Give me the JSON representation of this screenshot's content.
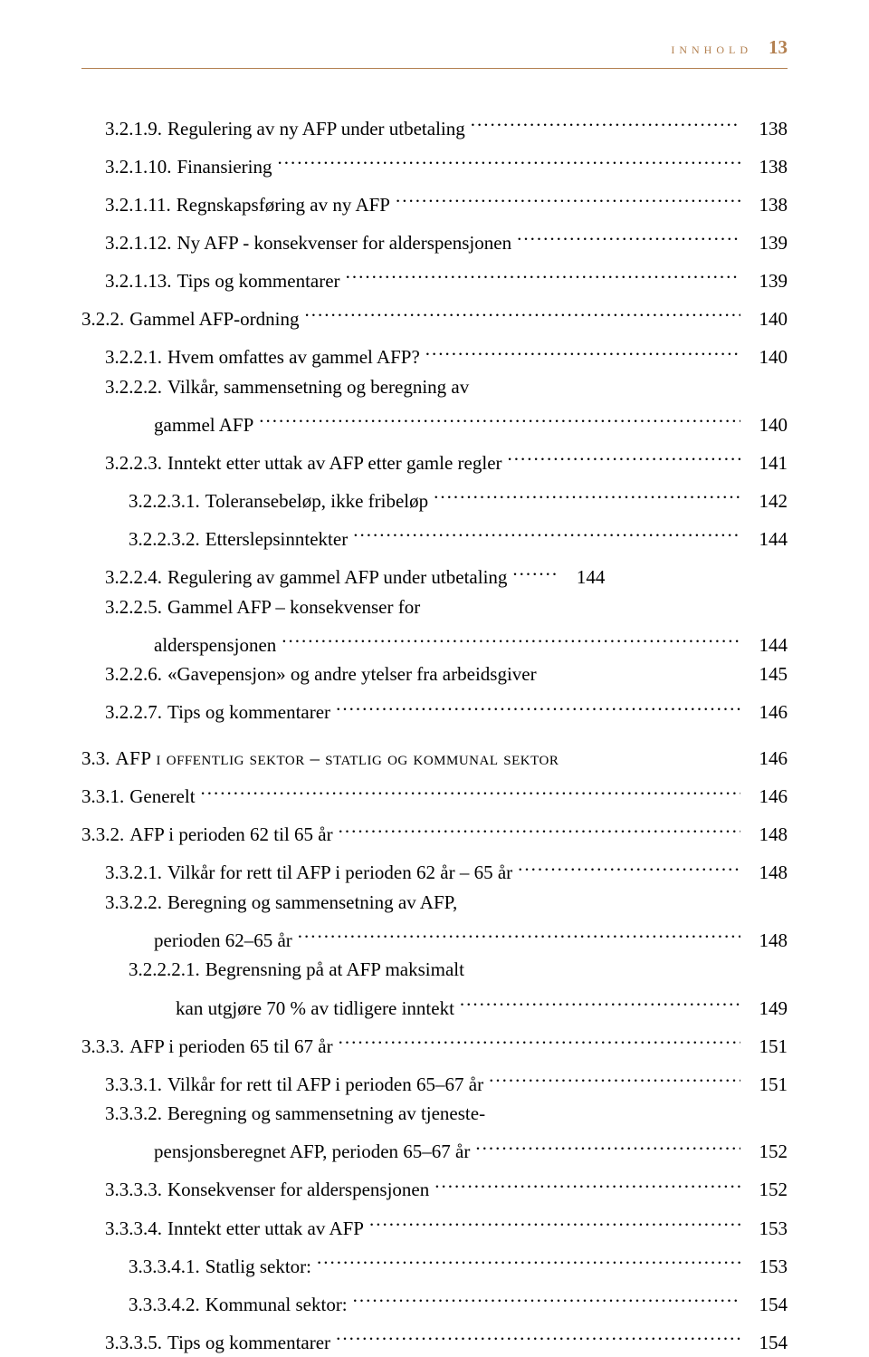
{
  "header": {
    "label": "innhold",
    "page": "13"
  },
  "entries": [
    {
      "num": "3.2.1.9.",
      "text": "Regulering av ny AFP under utbetaling",
      "page": "138",
      "indent": 1
    },
    {
      "num": "3.2.1.10.",
      "text": "Finansiering",
      "page": "138",
      "indent": 1
    },
    {
      "num": "3.2.1.11.",
      "text": "Regnskapsføring av ny AFP",
      "page": "138",
      "indent": 1
    },
    {
      "num": "3.2.1.12.",
      "text": "Ny AFP - konsekvenser for alderspensjonen",
      "page": "139",
      "indent": 1
    },
    {
      "num": "3.2.1.13.",
      "text": "Tips og kommentarer ",
      "page": "139",
      "indent": 1
    },
    {
      "num": "3.2.2.",
      "text": "Gammel AFP-ordning",
      "page": "140",
      "indent": 0
    },
    {
      "num": "3.2.2.1.",
      "text": "Hvem omfattes av gammel AFP? ",
      "page": "140",
      "indent": 1
    },
    {
      "num": "3.2.2.2.",
      "text": "Vilkår, sammensetning og beregning av",
      "page": "",
      "indent": 1,
      "noLeader": true
    },
    {
      "num": "",
      "text": "gammel AFP",
      "page": "140",
      "indent": 0,
      "contIndent": 2
    },
    {
      "num": "3.2.2.3.",
      "text": "Inntekt etter uttak av AFP etter gamle regler",
      "page": "141",
      "indent": 1
    },
    {
      "num": "3.2.2.3.1.",
      "text": "Toleransebeløp, ikke fribeløp",
      "page": "142",
      "indent": 2
    },
    {
      "num": "3.2.2.3.2.",
      "text": "Etterslepsinntekter ",
      "page": "144",
      "indent": 2
    },
    {
      "num": "3.2.2.4.",
      "text": "Regulering av gammel AFP under utbetaling",
      "page": "144",
      "indent": 1,
      "shortLeader": true
    },
    {
      "num": "3.2.2.5.",
      "text": "Gammel AFP – konsekvenser for",
      "page": "",
      "indent": 1,
      "noLeader": true
    },
    {
      "num": "",
      "text": "alderspensjonen",
      "page": "144",
      "indent": 0,
      "contIndent": 2
    },
    {
      "num": "3.2.2.6.",
      "text": "«Gavepensjon» og andre ytelser fra arbeidsgiver",
      "page": "145",
      "indent": 1,
      "noLeader": true,
      "spacer": true
    },
    {
      "num": "3.2.2.7.",
      "text": "Tips og kommentarer ",
      "page": "146",
      "indent": 1
    },
    {
      "gap": true
    },
    {
      "num": "3.3.",
      "text": "AFP i offentlig sektor – statlig og kommunal sektor",
      "page": "146",
      "indent": 0,
      "smallcaps": true,
      "noLeader": true,
      "spacer": true
    },
    {
      "num": "3.3.1.",
      "text": "Generelt ",
      "page": "146",
      "indent": 0
    },
    {
      "num": "3.3.2.",
      "text": "AFP i perioden 62 til 65 år",
      "page": "148",
      "indent": 0
    },
    {
      "num": "3.3.2.1.",
      "text": "Vilkår for rett til AFP i perioden 62 år – 65 år",
      "page": "148",
      "indent": 1
    },
    {
      "num": "3.3.2.2.",
      "text": "Beregning og sammensetning av AFP,",
      "page": "",
      "indent": 1,
      "noLeader": true
    },
    {
      "num": "",
      "text": "perioden 62–65 år",
      "page": "148",
      "indent": 0,
      "contIndent": 2
    },
    {
      "num": "3.2.2.2.1.",
      "text": "Begrensning på at AFP maksimalt",
      "page": "",
      "indent": 2,
      "noLeader": true
    },
    {
      "num": "",
      "text": "kan utgjøre 70 % av tidligere inntekt",
      "page": "149",
      "indent": 0,
      "contIndent": 3
    },
    {
      "num": "3.3.3.",
      "text": "AFP i perioden 65 til 67 år",
      "page": "151",
      "indent": 0
    },
    {
      "num": "3.3.3.1.",
      "text": "Vilkår for rett til AFP i perioden 65–67 år",
      "page": "151",
      "indent": 1
    },
    {
      "num": "3.3.3.2.",
      "text": "Beregning og sammensetning av tjeneste-",
      "page": "",
      "indent": 1,
      "noLeader": true
    },
    {
      "num": "",
      "text": "pensjonsberegnet AFP, perioden 65–67 år",
      "page": "152",
      "indent": 0,
      "contIndent": 2
    },
    {
      "num": "3.3.3.3.",
      "text": "Konsekvenser for alderspensjonen",
      "page": "152",
      "indent": 1
    },
    {
      "num": "3.3.3.4.",
      "text": "Inntekt etter uttak av AFP",
      "page": "153",
      "indent": 1
    },
    {
      "num": "3.3.3.4.1.",
      "text": "Statlig sektor: ",
      "page": "153",
      "indent": 2
    },
    {
      "num": "3.3.3.4.2.",
      "text": "Kommunal sektor: ",
      "page": "154",
      "indent": 2
    },
    {
      "num": "3.3.3.5.",
      "text": "Tips og kommentarer ",
      "page": "154",
      "indent": 1
    }
  ]
}
